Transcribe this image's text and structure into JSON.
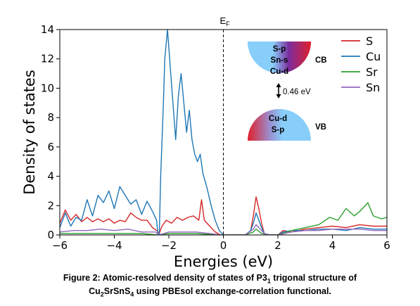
{
  "chart_data": {
    "type": "line",
    "xlabel": "Energies (eV)",
    "ylabel": "Density of states",
    "xlim": [
      -6,
      6
    ],
    "ylim": [
      0,
      14
    ],
    "xticks": [
      "−6",
      "−4",
      "−2",
      "0",
      "2",
      "4",
      "6"
    ],
    "yticks": [
      "0",
      "2",
      "4",
      "6",
      "8",
      "10",
      "12",
      "14"
    ],
    "fermi_label": "E",
    "fermi_sub": "F",
    "legend_position": "top-right",
    "series": [
      {
        "name": "S",
        "color": "#d62728",
        "points": [
          [
            -6,
            0.8
          ],
          [
            -5.8,
            1.7
          ],
          [
            -5.6,
            1.0
          ],
          [
            -5.4,
            1.4
          ],
          [
            -5.2,
            0.9
          ],
          [
            -5.0,
            1.2
          ],
          [
            -4.8,
            0.9
          ],
          [
            -4.6,
            1.1
          ],
          [
            -4.4,
            0.9
          ],
          [
            -4.2,
            1.1
          ],
          [
            -4.0,
            0.8
          ],
          [
            -3.8,
            1.0
          ],
          [
            -3.6,
            0.9
          ],
          [
            -3.4,
            1.5
          ],
          [
            -3.2,
            1.2
          ],
          [
            -3.0,
            1.0
          ],
          [
            -2.8,
            1.0
          ],
          [
            -2.6,
            0.5
          ],
          [
            -2.45,
            0.3
          ],
          [
            -2.35,
            0.1
          ],
          [
            -2.25,
            0.6
          ],
          [
            -2.1,
            1.0
          ],
          [
            -1.9,
            0.8
          ],
          [
            -1.7,
            1.2
          ],
          [
            -1.5,
            1.0
          ],
          [
            -1.3,
            1.2
          ],
          [
            -1.1,
            1.3
          ],
          [
            -0.9,
            1.0
          ],
          [
            -0.8,
            2.4
          ],
          [
            -0.7,
            1.0
          ],
          [
            -0.5,
            0.6
          ],
          [
            -0.3,
            0.2
          ],
          [
            -0.1,
            0.0
          ],
          [
            0.8,
            0.0
          ],
          [
            1.0,
            0.3
          ],
          [
            1.1,
            1.3
          ],
          [
            1.2,
            2.6
          ],
          [
            1.3,
            1.8
          ],
          [
            1.4,
            0.8
          ],
          [
            1.5,
            0.1
          ],
          [
            1.7,
            0.0
          ],
          [
            2.0,
            0.0
          ],
          [
            2.2,
            0.3
          ],
          [
            2.5,
            0.2
          ],
          [
            3.0,
            0.4
          ],
          [
            3.5,
            0.5
          ],
          [
            4.0,
            0.6
          ],
          [
            4.5,
            0.5
          ],
          [
            5.0,
            0.7
          ],
          [
            5.5,
            0.6
          ],
          [
            6.0,
            0.6
          ]
        ]
      },
      {
        "name": "Cu",
        "color": "#1f77b4",
        "points": [
          [
            -6,
            0.5
          ],
          [
            -5.8,
            1.5
          ],
          [
            -5.6,
            0.6
          ],
          [
            -5.4,
            1.2
          ],
          [
            -5.2,
            1.0
          ],
          [
            -5.0,
            2.4
          ],
          [
            -4.8,
            1.3
          ],
          [
            -4.6,
            2.7
          ],
          [
            -4.4,
            2.2
          ],
          [
            -4.2,
            3.0
          ],
          [
            -4.0,
            1.8
          ],
          [
            -3.8,
            3.3
          ],
          [
            -3.6,
            2.7
          ],
          [
            -3.4,
            2.1
          ],
          [
            -3.2,
            2.4
          ],
          [
            -3.0,
            1.4
          ],
          [
            -2.8,
            2.3
          ],
          [
            -2.6,
            1.6
          ],
          [
            -2.45,
            1.0
          ],
          [
            -2.4,
            0.0
          ],
          [
            -2.35,
            0.0
          ],
          [
            -2.3,
            4.0
          ],
          [
            -2.2,
            9.0
          ],
          [
            -2.15,
            12.0
          ],
          [
            -2.05,
            14.0
          ],
          [
            -1.95,
            11.5
          ],
          [
            -1.85,
            9.0
          ],
          [
            -1.75,
            6.5
          ],
          [
            -1.65,
            9.5
          ],
          [
            -1.55,
            11.0
          ],
          [
            -1.45,
            9.0
          ],
          [
            -1.35,
            7.0
          ],
          [
            -1.25,
            8.5
          ],
          [
            -1.15,
            6.5
          ],
          [
            -1.05,
            5.5
          ],
          [
            -0.95,
            5.0
          ],
          [
            -0.85,
            5.5
          ],
          [
            -0.75,
            4.2
          ],
          [
            -0.6,
            3.2
          ],
          [
            -0.45,
            2.0
          ],
          [
            -0.3,
            1.0
          ],
          [
            -0.15,
            0.3
          ],
          [
            0.0,
            0.0
          ],
          [
            0.8,
            0.0
          ],
          [
            1.0,
            0.3
          ],
          [
            1.1,
            0.8
          ],
          [
            1.2,
            1.5
          ],
          [
            1.3,
            1.0
          ],
          [
            1.4,
            0.5
          ],
          [
            1.5,
            0.1
          ],
          [
            1.7,
            0.0
          ],
          [
            2.0,
            0.0
          ],
          [
            2.2,
            0.2
          ],
          [
            2.5,
            0.3
          ],
          [
            3.0,
            0.3
          ],
          [
            3.5,
            0.4
          ],
          [
            4.0,
            0.4
          ],
          [
            4.5,
            0.3
          ],
          [
            5.0,
            0.5
          ],
          [
            5.5,
            0.4
          ],
          [
            6.0,
            0.4
          ]
        ]
      },
      {
        "name": "Sr",
        "color": "#2ca02c",
        "points": [
          [
            -6,
            0.1
          ],
          [
            -5.0,
            0.1
          ],
          [
            -4.0,
            0.1
          ],
          [
            -3.0,
            0.1
          ],
          [
            -2.4,
            0.0
          ],
          [
            -2.0,
            0.1
          ],
          [
            -1.0,
            0.1
          ],
          [
            -0.2,
            0.0
          ],
          [
            0.8,
            0.0
          ],
          [
            1.1,
            0.2
          ],
          [
            1.2,
            0.4
          ],
          [
            1.4,
            0.1
          ],
          [
            1.7,
            0.0
          ],
          [
            2.0,
            0.0
          ],
          [
            2.5,
            0.3
          ],
          [
            3.0,
            0.5
          ],
          [
            3.5,
            0.7
          ],
          [
            3.9,
            1.2
          ],
          [
            4.2,
            1.0
          ],
          [
            4.5,
            1.8
          ],
          [
            4.8,
            1.3
          ],
          [
            5.0,
            1.6
          ],
          [
            5.3,
            2.2
          ],
          [
            5.5,
            1.3
          ],
          [
            5.8,
            1.1
          ],
          [
            6.0,
            1.2
          ]
        ]
      },
      {
        "name": "Sn",
        "color": "#9467bd",
        "points": [
          [
            -6,
            0.2
          ],
          [
            -5.5,
            0.3
          ],
          [
            -5.0,
            0.3
          ],
          [
            -4.5,
            0.4
          ],
          [
            -4.0,
            0.3
          ],
          [
            -3.5,
            0.4
          ],
          [
            -3.0,
            0.2
          ],
          [
            -2.5,
            0.2
          ],
          [
            -2.35,
            0.0
          ],
          [
            -2.0,
            0.2
          ],
          [
            -1.5,
            0.2
          ],
          [
            -1.0,
            0.2
          ],
          [
            -0.5,
            0.1
          ],
          [
            -0.1,
            0.0
          ],
          [
            0.8,
            0.0
          ],
          [
            1.1,
            0.4
          ],
          [
            1.2,
            0.7
          ],
          [
            1.3,
            0.5
          ],
          [
            1.5,
            0.1
          ],
          [
            1.7,
            0.0
          ],
          [
            2.0,
            0.0
          ],
          [
            2.5,
            0.2
          ],
          [
            3.0,
            0.3
          ],
          [
            3.5,
            0.3
          ],
          [
            4.0,
            0.4
          ],
          [
            4.5,
            0.4
          ],
          [
            5.0,
            0.4
          ],
          [
            5.5,
            0.3
          ],
          [
            6.0,
            0.3
          ]
        ]
      }
    ],
    "inset": {
      "cb_lines": [
        "S-p",
        "Sn-s",
        "Cu-d"
      ],
      "cb_label": "CB",
      "gap_label": "0.46 eV",
      "vb_lines": [
        "Cu-d",
        "S-p"
      ],
      "vb_label": "VB",
      "colors": {
        "light": "#87cefa",
        "mid": "#7b2d9e",
        "dark": "#e0202a"
      }
    }
  },
  "caption": {
    "line1_a": "Figure 2: Atomic-resolved density of states of P3",
    "line1_sub": "1",
    "line1_b": " trigonal structure of",
    "line2_a": "Cu",
    "line2_sub1": "2",
    "line2_b": "SrSnS",
    "line2_sub2": "4",
    "line2_c": " using PBEsol exchange-correlation functional."
  }
}
